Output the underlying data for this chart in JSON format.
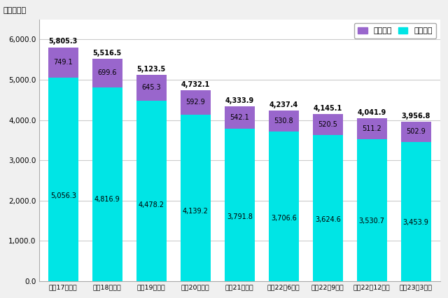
{
  "categories": [
    "平成17年度末",
    "平成18年度末",
    "平成19年度末",
    "平成20年度末",
    "平成21年度末",
    "平成22年6月末",
    "平成22年9月末",
    "平成22年12月末",
    "平成23年3月末"
  ],
  "telephone": [
    5056.3,
    4816.9,
    4478.2,
    4139.2,
    3791.8,
    3706.6,
    3624.6,
    3530.7,
    3453.9
  ],
  "isdn": [
    749.1,
    699.6,
    645.3,
    592.9,
    542.1,
    530.8,
    520.5,
    511.2,
    502.9
  ],
  "totals": [
    5805.3,
    5516.5,
    5123.5,
    4732.1,
    4333.9,
    4237.4,
    4145.1,
    4041.9,
    3956.8
  ],
  "telephone_color": "#00E5E5",
  "isdn_color": "#9966CC",
  "background_color": "#F0F0F0",
  "plot_bg_color": "#FFFFFF",
  "ylabel": "（万加入）",
  "ylim": [
    0,
    6500
  ],
  "yticks": [
    0,
    1000,
    2000,
    3000,
    4000,
    5000,
    6000
  ],
  "ytick_labels": [
    "0.0",
    "1,000.0",
    "2,000.0",
    "3,000.0",
    "4,000.0",
    "5,000.0",
    "6,000.0"
  ],
  "legend_isdn": "ＩＳＤＮ",
  "legend_tel": "加入電話",
  "tick_fontsize": 7.5,
  "label_fontsize": 8,
  "bar_label_fontsize": 7
}
